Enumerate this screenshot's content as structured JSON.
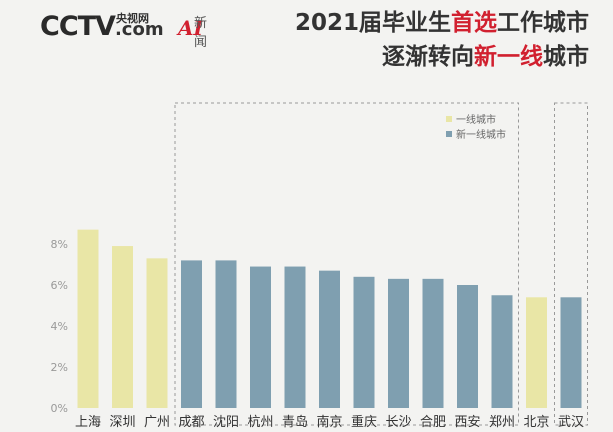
{
  "header": {
    "logo_cctv": "CCTV",
    "logo_small": "央视网",
    "logo_com": ".com",
    "logo_ai_a": "AI",
    "logo_ai_text": "新闻",
    "title_line1_pre": "2021届毕业生",
    "title_line1_hl": "首选",
    "title_line1_post": "工作城市",
    "title_line2_pre": "逐渐转向",
    "title_line2_hl": "新一线",
    "title_line2_post": "城市"
  },
  "chart_data": {
    "type": "bar",
    "categories": [
      "上海",
      "深圳",
      "广州",
      "成都",
      "沈阳",
      "杭州",
      "青岛",
      "南京",
      "重庆",
      "长沙",
      "合肥",
      "西安",
      "郑州",
      "北京",
      "武汉"
    ],
    "values": [
      8.7,
      7.9,
      7.3,
      7.2,
      7.2,
      6.9,
      6.9,
      6.7,
      6.4,
      6.3,
      6.3,
      6.0,
      5.5,
      5.4,
      5.4
    ],
    "groups": [
      "一线城市",
      "一线城市",
      "一线城市",
      "新一线城市",
      "新一线城市",
      "新一线城市",
      "新一线城市",
      "新一线城市",
      "新一线城市",
      "新一线城市",
      "新一线城市",
      "新一线城市",
      "新一线城市",
      "一线城市",
      "新一线城市"
    ],
    "ylim": [
      0,
      9
    ],
    "yticks": [
      0,
      2,
      4,
      6,
      8
    ],
    "ytick_labels": [
      "0%",
      "2%",
      "4%",
      "6%",
      "8%"
    ],
    "legend": {
      "placement": "top-right",
      "items": [
        {
          "label": "一线城市",
          "color": "#e9e6a6"
        },
        {
          "label": "新一线城市",
          "color": "#7f9fb0"
        }
      ]
    },
    "colors": {
      "一线城市": "#e9e6a6",
      "新一线城市": "#7f9fb0"
    },
    "highlight_boxes": [
      "成都–郑州",
      "武汉"
    ],
    "grid": false
  }
}
